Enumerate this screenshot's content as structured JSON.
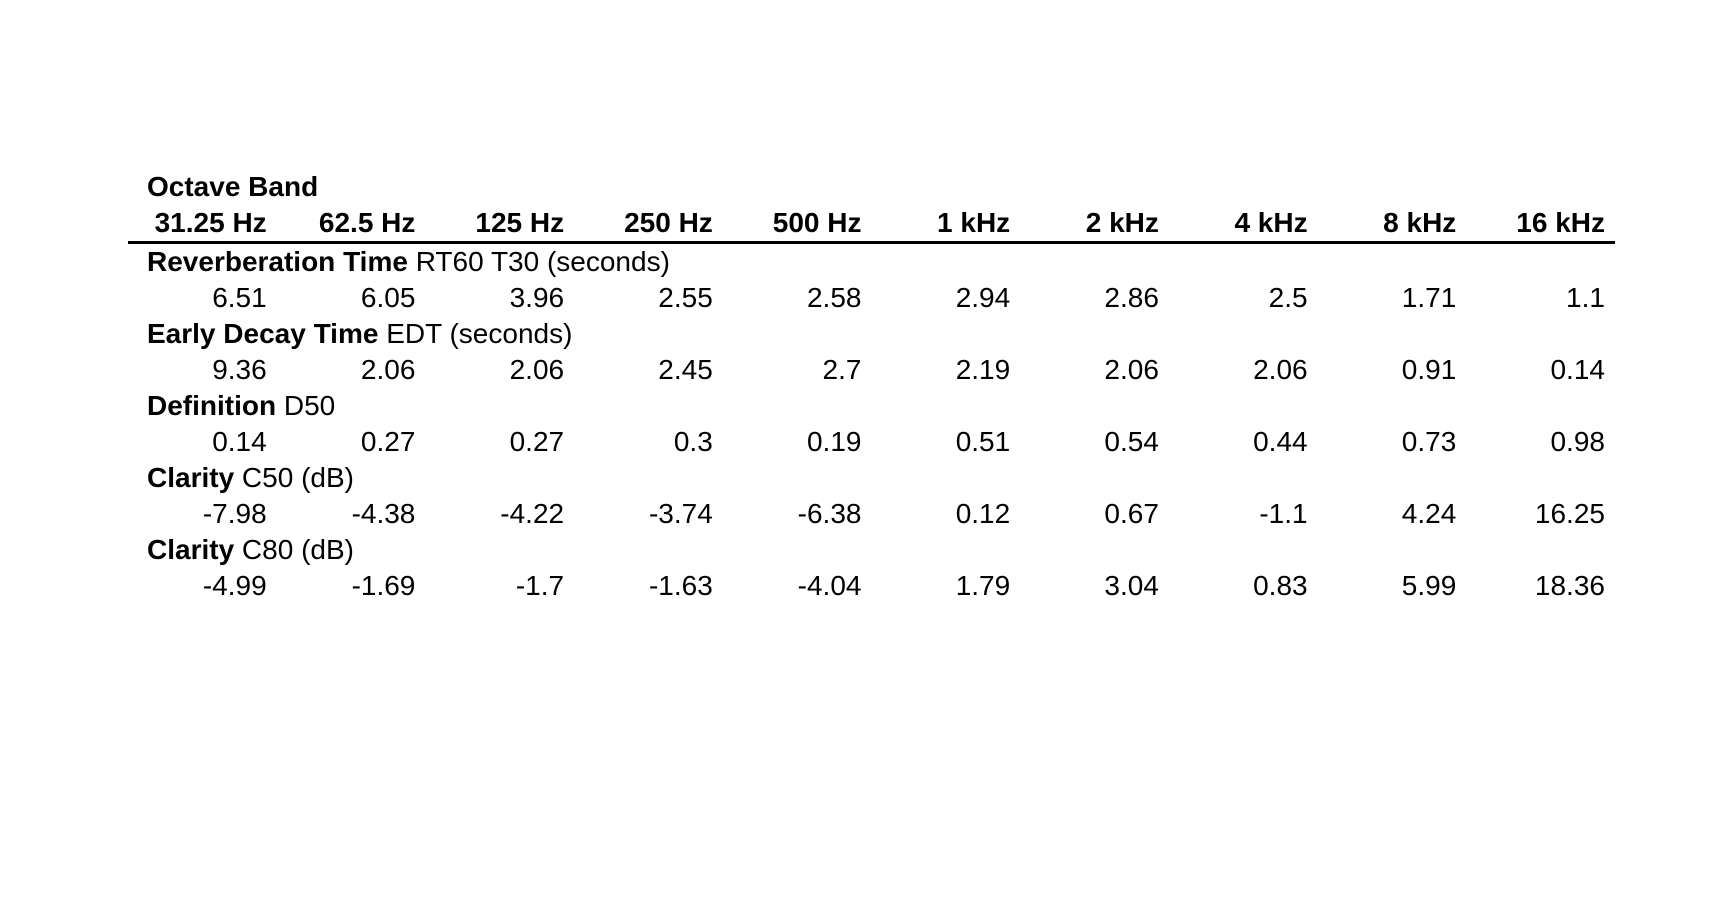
{
  "table": {
    "title": "Octave Band",
    "columns": [
      "31.25 Hz",
      "62.5 Hz",
      "125 Hz",
      "250 Hz",
      "500 Hz",
      "1 kHz",
      "2 kHz",
      "4 kHz",
      "8 kHz",
      "16 kHz"
    ],
    "rows": [
      {
        "label_bold": "Reverberation Time",
        "label_rest": " RT60 T30 (seconds)",
        "values": [
          "6.51",
          "6.05",
          "3.96",
          "2.55",
          "2.58",
          "2.94",
          "2.86",
          "2.5",
          "1.71",
          "1.1"
        ]
      },
      {
        "label_bold": "Early Decay Time",
        "label_rest": " EDT (seconds)",
        "values": [
          "9.36",
          "2.06",
          "2.06",
          "2.45",
          "2.7",
          "2.19",
          "2.06",
          "2.06",
          "0.91",
          "0.14"
        ]
      },
      {
        "label_bold": "Definition",
        "label_rest": " D50",
        "values": [
          "0.14",
          "0.27",
          "0.27",
          "0.3",
          "0.19",
          "0.51",
          "0.54",
          "0.44",
          "0.73",
          "0.98"
        ]
      },
      {
        "label_bold": "Clarity",
        "label_rest": " C50 (dB)",
        "values": [
          "-7.98",
          "-4.38",
          "-4.22",
          "-3.74",
          "-6.38",
          "0.12",
          "0.67",
          "-1.1",
          "4.24",
          "16.25"
        ]
      },
      {
        "label_bold": "Clarity",
        "label_rest": " C80 (dB)",
        "values": [
          "-4.99",
          "-1.69",
          "-1.7",
          "-1.63",
          "-4.04",
          "1.79",
          "3.04",
          "0.83",
          "5.99",
          "18.36"
        ]
      }
    ]
  },
  "colors": {
    "text": "#000000",
    "background": "#ffffff",
    "rule": "#000000"
  }
}
